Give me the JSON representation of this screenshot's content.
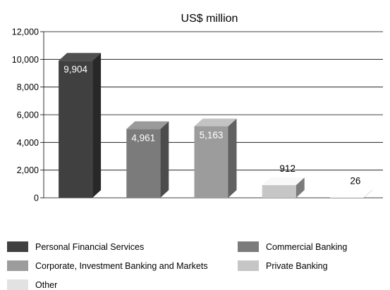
{
  "chart_data": {
    "type": "bar",
    "title": "US$ million",
    "xlabel": "",
    "ylabel": "",
    "ylim": [
      0,
      12000
    ],
    "yticks": [
      "0",
      "2,000",
      "4,000",
      "6,000",
      "8,000",
      "10,000",
      "12,000"
    ],
    "grid": true,
    "legend_position": "bottom",
    "categories": [
      "Personal Financial Services",
      "Commercial Banking",
      "Corporate, Investment Banking and Markets",
      "Private Banking",
      "Other"
    ],
    "values": [
      9904,
      4961,
      5163,
      912,
      26
    ],
    "value_labels": [
      "9,904",
      "4,961",
      "5,163",
      "912",
      "26"
    ],
    "colors": [
      "#404040",
      "#7b7b7b",
      "#9c9c9c",
      "#c6c6c6",
      "#e2e2e2"
    ]
  }
}
